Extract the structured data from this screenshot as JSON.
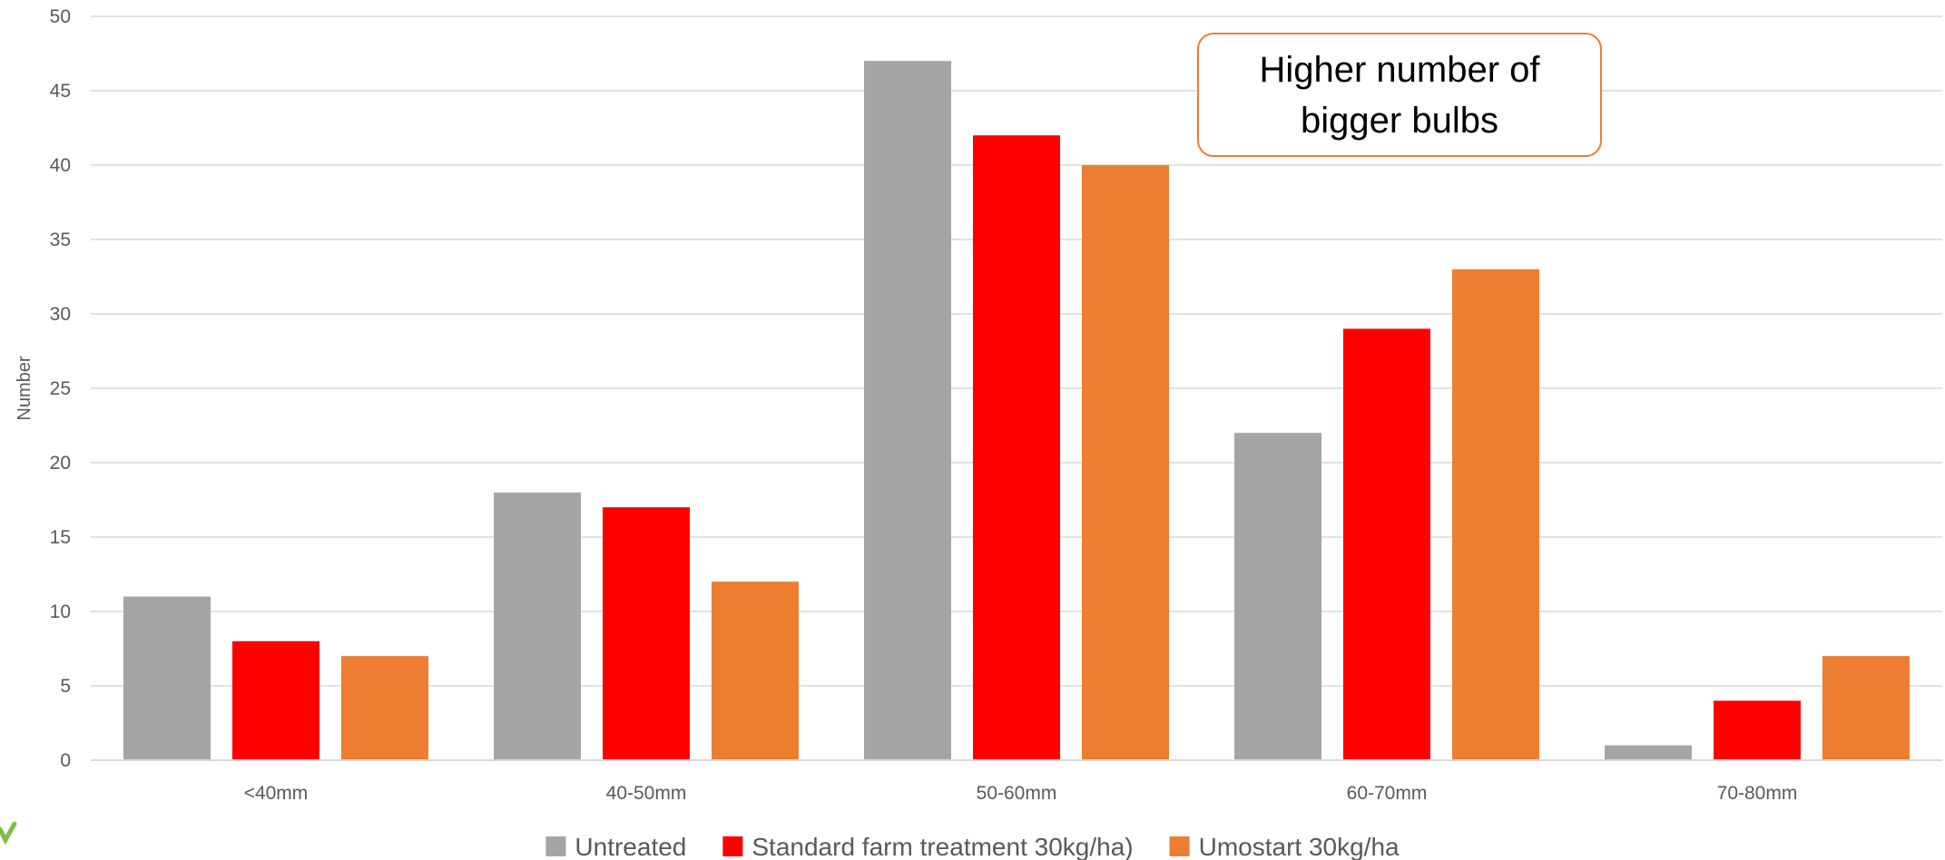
{
  "chart_data": {
    "type": "bar",
    "title": "",
    "xlabel": "",
    "ylabel": "Number",
    "ylim": [
      0,
      50
    ],
    "yticks": [
      0,
      5,
      10,
      15,
      20,
      25,
      30,
      35,
      40,
      45,
      50
    ],
    "grid": true,
    "legend_position": "bottom",
    "categories": [
      "<40mm",
      "40-50mm",
      "50-60mm",
      "60-70mm",
      "70-80mm"
    ],
    "series": [
      {
        "name": "Untreated",
        "color": "#a5a5a5",
        "values": [
          11,
          18,
          47,
          22,
          1
        ]
      },
      {
        "name": "Standard farm treatment 30kg/ha)",
        "color": "#ff0000",
        "values": [
          8,
          17,
          42,
          29,
          4
        ]
      },
      {
        "name": "Umostart 30kg/ha",
        "color": "#ed7d31",
        "values": [
          7,
          12,
          40,
          33,
          7
        ]
      }
    ],
    "annotation": "Higher number of bigger bulbs"
  },
  "colors": {
    "gridline": "#d9d9d9",
    "tick_text": "#595959",
    "callout_border": "#ed7d31",
    "logo_check": "#7ac143"
  }
}
